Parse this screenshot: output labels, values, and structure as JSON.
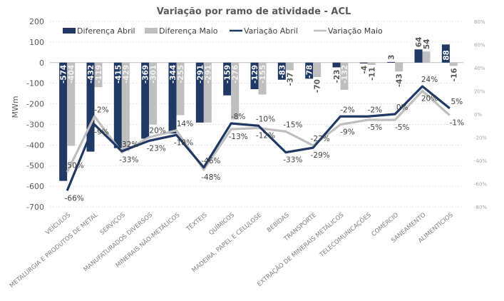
{
  "chart_data": {
    "type": "bar",
    "title": "Variação por ramo de atividade - ACL",
    "xlabel": "",
    "ylabel": "MWm",
    "ylim": [
      -700,
      200
    ],
    "yticks": [
      200,
      100,
      0,
      -100,
      -200,
      -300,
      -400,
      -500,
      -600,
      -700
    ],
    "y2lim": [
      -0.8,
      0.8
    ],
    "y2ticks": [
      "80%",
      "60%",
      "40%",
      "20%",
      "0%",
      "-20%",
      "-40%",
      "-60%",
      "-80%"
    ],
    "grid": true,
    "legend_position": "top",
    "categories": [
      "VEÍCULOS",
      "METALURGIA E PRODUTOS DE METAL",
      "SERVIÇOS",
      "MANUFATURADOS DIVERSOS",
      "MINERAIS NÃO-METÁLICOS",
      "TÊXTEIS",
      "QUÍMICOS",
      "MADEIRA, PAPEL E CELULOSE",
      "BEBIDAS",
      "TRANSPORTE",
      "EXTRAÇÃO DE MINERAIS METÁLICOS",
      "TELECOMUNICAÇÕES",
      "COMÉRCIO",
      "SANEAMENTO",
      "ALIMENTÍCIOS"
    ],
    "series": [
      {
        "name": "Diferença Abril",
        "type": "bar",
        "axis": "left",
        "color": "#1f3864",
        "values": [
          -574,
          -432,
          -415,
          -369,
          -344,
          -291,
          -159,
          -129,
          -83,
          -78,
          -23,
          -4,
          3,
          64,
          88
        ]
      },
      {
        "name": "Diferença Maio",
        "type": "bar",
        "axis": "left",
        "color": "#bfbfbf",
        "values": [
          -404,
          -119,
          -429,
          -301,
          -255,
          -291,
          -276,
          -155,
          -37,
          -70,
          -132,
          -11,
          -43,
          54,
          -16
        ]
      },
      {
        "name": "Variação Abril",
        "type": "line",
        "axis": "right",
        "color": "#1f3864",
        "values": [
          -66,
          -9,
          -32,
          -23,
          -18,
          -46,
          -8,
          -10,
          -33,
          -29,
          -2,
          -2,
          0,
          24,
          5
        ],
        "labels": [
          "-66%",
          "-9%",
          "-32%",
          "-23%",
          "-18%",
          "-46%",
          "-8%",
          "-10%",
          "-33%",
          "-29%",
          "-2%",
          "-2%",
          "0%",
          "24%",
          "5%"
        ]
      },
      {
        "name": "Variação Maio",
        "type": "line",
        "axis": "right",
        "color": "#bfbfbf",
        "values": [
          -50,
          -2,
          -33,
          -20,
          -14,
          -48,
          -13,
          -12,
          -15,
          -27,
          -9,
          -5,
          -5,
          20,
          -1
        ],
        "labels": [
          "-50%",
          "-2%",
          "-33%",
          "-20%",
          "-14%",
          "-48%",
          "-13%",
          "-12%",
          "-15%",
          "-27%",
          "-9%",
          "-5%",
          "-5%",
          "20%",
          "-1%"
        ]
      }
    ]
  }
}
